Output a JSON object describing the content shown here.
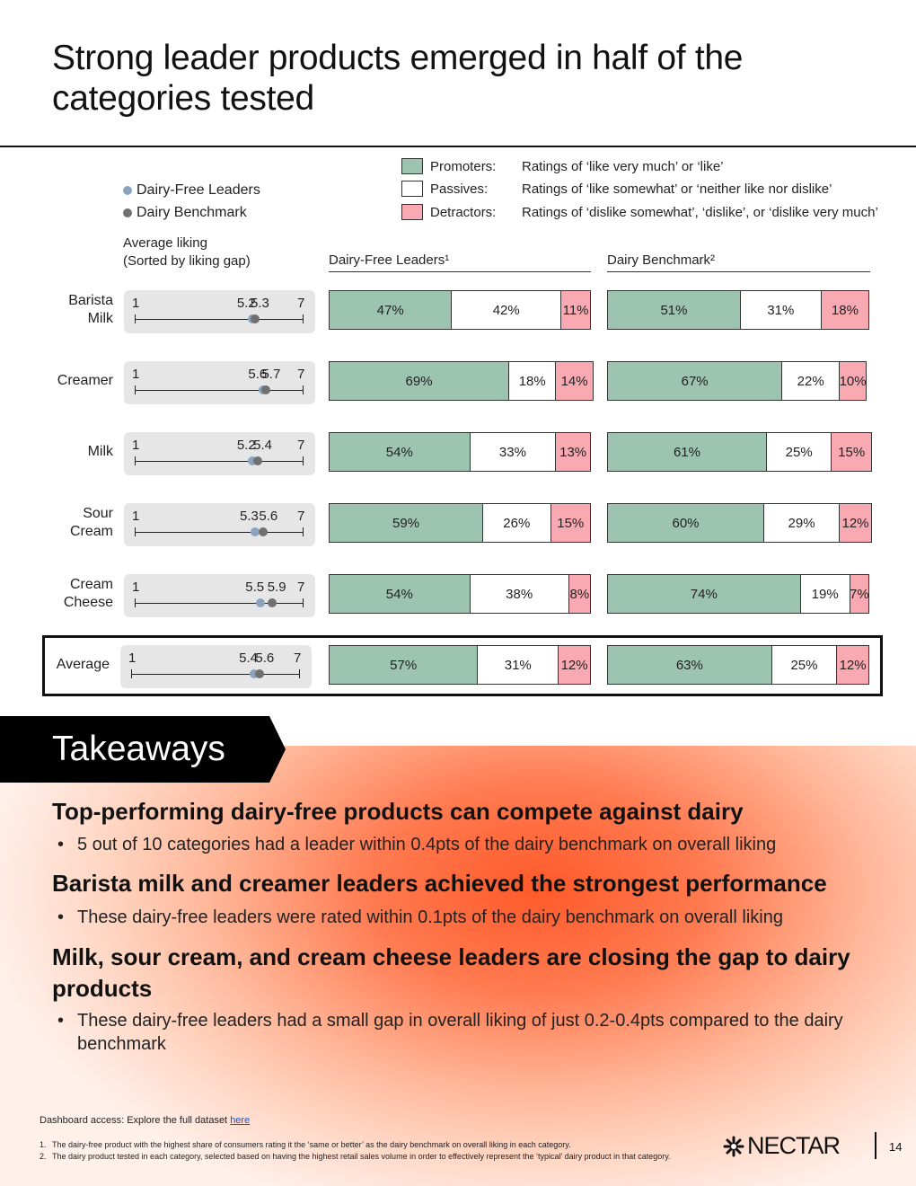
{
  "title": "Strong leader products emerged in half of the categories tested",
  "legend": {
    "dairy_free": "Dairy-Free Leaders",
    "dairy": "Dairy Benchmark",
    "dairy_free_color": "#8aa4bf",
    "dairy_color": "#707070"
  },
  "ratings": [
    {
      "name": "Promoters:",
      "desc": "Ratings of ‘like very much’ or ‘like’",
      "color": "#9cc4b1"
    },
    {
      "name": "Passives:",
      "desc": "Ratings of ‘like somewhat’ or ‘neither like nor dislike’",
      "color": "#ffffff"
    },
    {
      "name": "Detractors:",
      "desc": "Ratings of ‘dislike somewhat’, ‘dislike’, or ‘dislike very much’",
      "color": "#f8a9b2"
    }
  ],
  "axis_title": [
    "Average liking",
    "(Sorted by liking gap)"
  ],
  "col_heads": {
    "left": "Dairy-Free Leaders¹",
    "right": "Dairy Benchmark²"
  },
  "scale": {
    "min": "1",
    "max": "7"
  },
  "chart_data": {
    "type": "bar",
    "categories": [
      "Barista Milk",
      "Creamer",
      "Milk",
      "Sour Cream",
      "Cream Cheese",
      "Average"
    ],
    "liking": {
      "dairy_free": [
        5.2,
        5.6,
        5.2,
        5.3,
        5.5,
        5.4
      ],
      "dairy": [
        5.3,
        5.7,
        5.4,
        5.6,
        5.9,
        5.6
      ],
      "xlim": [
        1,
        7
      ]
    },
    "dairy_free_leaders": {
      "promoters": [
        47,
        69,
        54,
        59,
        54,
        57
      ],
      "passives": [
        42,
        18,
        33,
        26,
        38,
        31
      ],
      "detractors": [
        11,
        14,
        13,
        15,
        8,
        12
      ]
    },
    "dairy_benchmark": {
      "promoters": [
        51,
        67,
        61,
        60,
        74,
        63
      ],
      "passives": [
        31,
        22,
        25,
        29,
        19,
        25
      ],
      "detractors": [
        18,
        10,
        15,
        12,
        7,
        12
      ]
    }
  },
  "rows": [
    {
      "label1": "Barista",
      "label2": "Milk",
      "df_lbl": "5.2",
      "d_lbl": "5.3"
    },
    {
      "label1": "Creamer",
      "label2": "",
      "df_lbl": "5.6",
      "d_lbl": "5.7"
    },
    {
      "label1": "Milk",
      "label2": "",
      "df_lbl": "5.2",
      "d_lbl": "5.4"
    },
    {
      "label1": "Sour",
      "label2": "Cream",
      "df_lbl": "5.3",
      "d_lbl": "5.6"
    },
    {
      "label1": "Cream",
      "label2": "Cheese",
      "df_lbl": "5.5",
      "d_lbl": "5.9"
    },
    {
      "label1": "Average",
      "label2": "",
      "df_lbl": "5.4",
      "d_lbl": "5.6"
    }
  ],
  "takeaways": {
    "title": "Takeaways",
    "items": [
      {
        "head": "Top-performing dairy-free products can compete against dairy",
        "bullet": "5 out of 10 categories had a leader within 0.4pts of the dairy benchmark on overall liking"
      },
      {
        "head": "Barista milk and creamer leaders achieved the strongest performance",
        "bullet": "These dairy-free leaders were rated within 0.1pts of the dairy benchmark on overall liking"
      },
      {
        "head": "Milk, sour cream, and cream cheese leaders are closing the gap to dairy products",
        "bullet": "These dairy-free leaders had a small gap in overall liking of just 0.2-0.4pts compared to the dairy benchmark"
      }
    ]
  },
  "dashboard": {
    "text": "Dashboard access: Explore the full dataset ",
    "link": "here"
  },
  "footnotes": [
    {
      "n": "1.",
      "t": "The dairy-free product with the highest share of consumers rating it the ‘same or better’ as the dairy benchmark on overall liking in each category."
    },
    {
      "n": "2.",
      "t": "The dairy product tested in each category, selected based on having the highest retail sales volume in order to effectively represent the ‘typical’ dairy product in that category."
    }
  ],
  "brand": "NECTAR",
  "page_number": "14"
}
